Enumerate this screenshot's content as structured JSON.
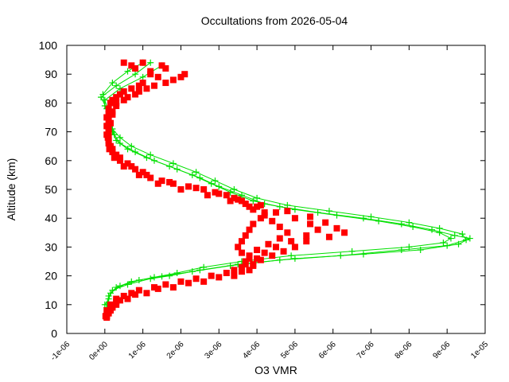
{
  "chart_data": {
    "type": "scatter",
    "title": "Occultations from 2026-05-04",
    "xlabel": "O3 VMR",
    "ylabel": "Altitude (km)",
    "xlim": [
      -1e-06,
      1e-05
    ],
    "ylim": [
      0,
      100
    ],
    "grid": false,
    "x_ticks": [
      {
        "value": -1e-06,
        "label": "-1e-06"
      },
      {
        "value": 0,
        "label": "0e+00"
      },
      {
        "value": 1e-06,
        "label": "1e-06"
      },
      {
        "value": 2e-06,
        "label": "2e-06"
      },
      {
        "value": 3e-06,
        "label": "3e-06"
      },
      {
        "value": 4e-06,
        "label": "4e-06"
      },
      {
        "value": 5e-06,
        "label": "5e-06"
      },
      {
        "value": 6e-06,
        "label": "6e-06"
      },
      {
        "value": 7e-06,
        "label": "7e-06"
      },
      {
        "value": 8e-06,
        "label": "8e-06"
      },
      {
        "value": 9e-06,
        "label": "9e-06"
      },
      {
        "value": 1e-05,
        "label": "1e-05"
      }
    ],
    "y_ticks": [
      {
        "value": 0,
        "label": "0"
      },
      {
        "value": 10,
        "label": "10"
      },
      {
        "value": 20,
        "label": "20"
      },
      {
        "value": 30,
        "label": "30"
      },
      {
        "value": 40,
        "label": "40"
      },
      {
        "value": 50,
        "label": "50"
      },
      {
        "value": 60,
        "label": "60"
      },
      {
        "value": 70,
        "label": "70"
      },
      {
        "value": 80,
        "label": "80"
      },
      {
        "value": 90,
        "label": "90"
      },
      {
        "value": 100,
        "label": "100"
      }
    ],
    "series": [
      {
        "color": "#00e000",
        "marker": "plus",
        "connected": true,
        "profiles": [
          [
            [
              1.2e-06,
              94
            ],
            [
              8e-07,
              90
            ],
            [
              3e-07,
              86
            ],
            [
              -1e-07,
              82
            ],
            [
              5e-08,
              78
            ],
            [
              1e-07,
              74
            ],
            [
              2e-07,
              70
            ],
            [
              3e-07,
              67
            ],
            [
              6e-07,
              64
            ],
            [
              1.1e-06,
              61
            ],
            [
              1.7e-06,
              58
            ],
            [
              2.3e-06,
              55
            ],
            [
              2.8e-06,
              52
            ],
            [
              3.3e-06,
              49
            ],
            [
              3.9e-06,
              46
            ],
            [
              4.6e-06,
              44
            ],
            [
              5.6e-06,
              42
            ],
            [
              6.8e-06,
              40
            ],
            [
              7.8e-06,
              38
            ],
            [
              8.6e-06,
              36
            ],
            [
              9.2e-06,
              34
            ],
            [
              9.6e-06,
              33
            ],
            [
              9.3e-06,
              31
            ],
            [
              8.3e-06,
              29
            ],
            [
              6.8e-06,
              27.5
            ],
            [
              5e-06,
              26
            ],
            [
              3.5e-06,
              24
            ],
            [
              2.5e-06,
              22
            ],
            [
              1.7e-06,
              20
            ],
            [
              1.2e-06,
              19
            ],
            [
              6e-07,
              17
            ],
            [
              2e-07,
              15
            ],
            [
              1e-07,
              12
            ],
            [
              0,
              10
            ]
          ],
          [
            [
              1.5e-06,
              93
            ],
            [
              1e-06,
              89
            ],
            [
              4e-07,
              85
            ],
            [
              0,
              81
            ],
            [
              1e-07,
              77
            ],
            [
              1.5e-07,
              73
            ],
            [
              2.5e-07,
              69
            ],
            [
              4e-07,
              66
            ],
            [
              8e-07,
              63
            ],
            [
              1.3e-06,
              60
            ],
            [
              1.9e-06,
              57
            ],
            [
              2.5e-06,
              54
            ],
            [
              3e-06,
              51
            ],
            [
              3.6e-06,
              48
            ],
            [
              4.2e-06,
              45
            ],
            [
              5e-06,
              43
            ],
            [
              6.1e-06,
              41
            ],
            [
              7.2e-06,
              39
            ],
            [
              8.1e-06,
              37
            ],
            [
              8.8e-06,
              35
            ],
            [
              9.1e-06,
              33
            ],
            [
              8.9e-06,
              31.5
            ],
            [
              8e-06,
              30
            ],
            [
              6.5e-06,
              28.5
            ],
            [
              4.9e-06,
              27
            ],
            [
              3.6e-06,
              25
            ],
            [
              2.6e-06,
              23
            ],
            [
              1.9e-06,
              21
            ],
            [
              1.3e-06,
              19.5
            ],
            [
              7e-07,
              18
            ],
            [
              3e-07,
              16
            ],
            [
              1e-07,
              13
            ],
            [
              5e-08,
              10
            ]
          ],
          [
            [
              1e-06,
              94
            ],
            [
              6e-07,
              91
            ],
            [
              2e-07,
              87
            ],
            [
              -5e-08,
              83
            ],
            [
              0,
              79
            ],
            [
              1e-07,
              75
            ],
            [
              2e-07,
              71
            ],
            [
              4e-07,
              68
            ],
            [
              7e-07,
              65
            ],
            [
              1.2e-06,
              62
            ],
            [
              1.8e-06,
              59
            ],
            [
              2.4e-06,
              56
            ],
            [
              2.9e-06,
              53
            ],
            [
              3.4e-06,
              50
            ],
            [
              4e-06,
              47
            ],
            [
              4.8e-06,
              44.5
            ],
            [
              5.9e-06,
              42.5
            ],
            [
              7e-06,
              40.5
            ],
            [
              8e-06,
              38.5
            ],
            [
              8.8e-06,
              36.5
            ],
            [
              9.4e-06,
              34.5
            ],
            [
              9.5e-06,
              32.5
            ],
            [
              9e-06,
              30.5
            ],
            [
              7.8e-06,
              29
            ],
            [
              6.2e-06,
              27
            ],
            [
              4.6e-06,
              25.5
            ],
            [
              3.3e-06,
              23.5
            ],
            [
              2.3e-06,
              21.5
            ],
            [
              1.5e-06,
              19.8
            ],
            [
              9e-07,
              18.5
            ],
            [
              4e-07,
              16.5
            ],
            [
              1.5e-07,
              14
            ],
            [
              5e-08,
              9
            ]
          ]
        ]
      },
      {
        "color": "#ff0000",
        "marker": "square",
        "connected": false,
        "profiles": [
          [
            [
              1e-06,
              94
            ],
            [
              1.5e-06,
              93
            ],
            [
              2.1e-06,
              90
            ],
            [
              1.8e-06,
              88
            ],
            [
              1.3e-06,
              86
            ],
            [
              9e-07,
              84
            ],
            [
              6e-07,
              82
            ],
            [
              3e-07,
              80
            ],
            [
              2e-07,
              77
            ],
            [
              1e-07,
              74
            ],
            [
              1e-07,
              71
            ],
            [
              1e-07,
              68
            ],
            [
              1.5e-07,
              65
            ],
            [
              3e-07,
              62
            ],
            [
              6e-07,
              59
            ],
            [
              1e-06,
              56
            ],
            [
              1.5e-06,
              53
            ],
            [
              2.2e-06,
              51
            ],
            [
              2.9e-06,
              49
            ],
            [
              3.4e-06,
              47
            ],
            [
              3.7e-06,
              45
            ],
            [
              3.9e-06,
              43
            ],
            [
              4.2e-06,
              41
            ],
            [
              4.4e-06,
              39
            ],
            [
              4.6e-06,
              37
            ],
            [
              4.8e-06,
              35
            ],
            [
              4.6e-06,
              33
            ],
            [
              4.3e-06,
              31
            ],
            [
              4e-06,
              29
            ],
            [
              3.8e-06,
              27
            ],
            [
              3.7e-06,
              25
            ],
            [
              3.6e-06,
              23
            ],
            [
              3.2e-06,
              21
            ],
            [
              2.4e-06,
              19
            ],
            [
              1.6e-06,
              17
            ],
            [
              9e-07,
              15
            ],
            [
              5e-07,
              13
            ],
            [
              3e-07,
              11
            ],
            [
              2e-07,
              9
            ],
            [
              1e-07,
              7
            ],
            [
              5e-08,
              5.5
            ]
          ],
          [
            [
              5e-07,
              94
            ],
            [
              8e-07,
              92
            ],
            [
              1.2e-06,
              90
            ],
            [
              1e-06,
              87
            ],
            [
              7e-07,
              85
            ],
            [
              4e-07,
              83
            ],
            [
              2e-07,
              81
            ],
            [
              1e-07,
              78
            ],
            [
              5e-08,
              75
            ],
            [
              5e-08,
              72
            ],
            [
              5e-08,
              69
            ],
            [
              1e-07,
              66
            ],
            [
              2e-07,
              63
            ],
            [
              4e-07,
              60
            ],
            [
              8e-07,
              57
            ],
            [
              1.2e-06,
              54
            ],
            [
              1.8e-06,
              52
            ],
            [
              2.6e-06,
              50
            ],
            [
              3.2e-06,
              48
            ],
            [
              3.6e-06,
              46
            ],
            [
              4e-06,
              44
            ],
            [
              4.5e-06,
              42
            ],
            [
              5e-06,
              40
            ],
            [
              5.4e-06,
              38
            ],
            [
              5.6e-06,
              36
            ],
            [
              5.3e-06,
              34
            ],
            [
              4.9e-06,
              32
            ],
            [
              4.5e-06,
              30
            ],
            [
              4.2e-06,
              28
            ],
            [
              4e-06,
              26
            ],
            [
              3.9e-06,
              24
            ],
            [
              3.8e-06,
              22
            ],
            [
              3.4e-06,
              20
            ],
            [
              2.6e-06,
              18
            ],
            [
              1.8e-06,
              16
            ],
            [
              1.1e-06,
              14
            ],
            [
              6e-07,
              12
            ],
            [
              3e-07,
              10
            ],
            [
              1.5e-07,
              8
            ],
            [
              5e-08,
              6
            ]
          ],
          [
            [
              1.6e-06,
              92
            ],
            [
              2e-06,
              89
            ],
            [
              1.6e-06,
              87
            ],
            [
              1.1e-06,
              85
            ],
            [
              8e-07,
              83
            ],
            [
              5e-07,
              81
            ],
            [
              3e-07,
              79
            ],
            [
              2e-07,
              76
            ],
            [
              1.5e-07,
              73
            ],
            [
              1e-07,
              70
            ],
            [
              1e-07,
              67
            ],
            [
              2e-07,
              64
            ],
            [
              4e-07,
              61
            ],
            [
              7e-07,
              58
            ],
            [
              1.1e-06,
              55
            ],
            [
              1.7e-06,
              52.5
            ],
            [
              2.4e-06,
              50.5
            ],
            [
              3e-06,
              48.5
            ],
            [
              3.5e-06,
              46.5
            ],
            [
              4.1e-06,
              44.5
            ],
            [
              4.8e-06,
              42.5
            ],
            [
              5.4e-06,
              40.5
            ],
            [
              5.8e-06,
              38.5
            ],
            [
              6.1e-06,
              36.5
            ],
            [
              6.3e-06,
              35
            ],
            [
              5.9e-06,
              33.5
            ],
            [
              5.3e-06,
              32
            ],
            [
              5e-06,
              30
            ],
            [
              4.7e-06,
              28.5
            ],
            [
              4.4e-06,
              27
            ],
            [
              4.1e-06,
              25.5
            ],
            [
              3.9e-06,
              23.5
            ],
            [
              3.6e-06,
              21.5
            ],
            [
              3e-06,
              19.5
            ],
            [
              2.2e-06,
              17.5
            ],
            [
              1.4e-06,
              15.5
            ],
            [
              8e-07,
              13.5
            ],
            [
              4e-07,
              11.5
            ],
            [
              2e-07,
              9.5
            ],
            [
              1e-07,
              7.5
            ],
            [
              5e-08,
              6
            ]
          ],
          [
            [
              7e-07,
              93
            ],
            [
              1.2e-06,
              91
            ],
            [
              1.4e-06,
              89
            ],
            [
              9e-07,
              86
            ],
            [
              5e-07,
              84
            ],
            [
              3e-07,
              82
            ],
            [
              1.5e-07,
              80
            ],
            [
              1e-07,
              76
            ],
            [
              8e-08,
              72
            ],
            [
              8e-08,
              68
            ],
            [
              1.2e-07,
              64
            ],
            [
              2.5e-07,
              61
            ],
            [
              5e-07,
              58
            ],
            [
              9e-07,
              55
            ],
            [
              1.4e-06,
              52
            ],
            [
              2e-06,
              50
            ],
            [
              2.7e-06,
              48
            ],
            [
              3.3e-06,
              46
            ],
            [
              3.8e-06,
              44
            ],
            [
              4.2e-06,
              42
            ],
            [
              4.1e-06,
              40
            ],
            [
              3.9e-06,
              38
            ],
            [
              3.8e-06,
              36
            ],
            [
              3.7e-06,
              34
            ],
            [
              3.6e-06,
              32
            ],
            [
              3.5e-06,
              30
            ],
            [
              3.6e-06,
              28
            ],
            [
              3.8e-06,
              26
            ],
            [
              3.7e-06,
              24
            ],
            [
              3.4e-06,
              22
            ],
            [
              2.8e-06,
              20
            ],
            [
              2e-06,
              18
            ],
            [
              1.3e-06,
              16
            ],
            [
              7e-07,
              14
            ],
            [
              3e-07,
              12
            ],
            [
              1.5e-07,
              10
            ],
            [
              5e-08,
              8
            ],
            [
              2e-08,
              6
            ]
          ]
        ]
      }
    ]
  }
}
